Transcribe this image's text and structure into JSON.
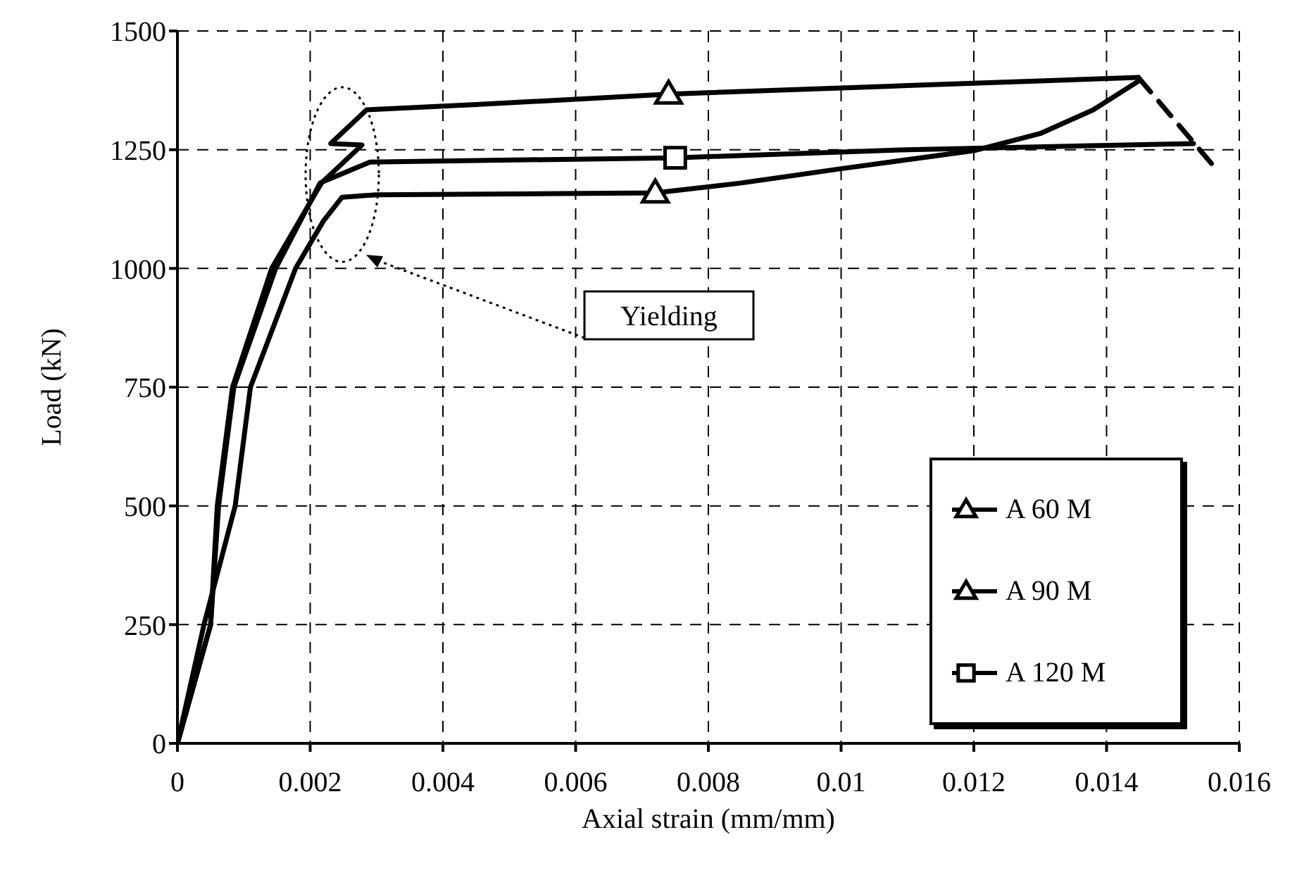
{
  "chart_data": {
    "type": "line",
    "xlabel": "Axial strain (mm/mm)",
    "ylabel": "Load (kN)",
    "xlim": [
      0,
      0.016
    ],
    "xticks": [
      0,
      0.002,
      0.004,
      0.006,
      0.008,
      {
        "value": 0.01,
        "label": "0.01"
      },
      0.012,
      0.014,
      0.016
    ],
    "ylim": [
      0,
      1500
    ],
    "yticks": [
      0,
      250,
      500,
      750,
      1000,
      1250,
      1500
    ],
    "grid": true,
    "legend": "bottom right",
    "line_style": "solid",
    "annotations": [
      "Yielding"
    ],
    "series": [
      {
        "name": "A 60 M",
        "color": "#000000",
        "x": [
          0,
          0.0005,
          0.0006,
          0.00083,
          0.00142,
          0.00217,
          0.00278,
          0.00231,
          0.00285,
          0.0045,
          0.0074,
          0.011,
          0.01448
        ],
        "values": [
          0,
          250,
          500,
          750,
          1000,
          1180,
          1260,
          1263,
          1334,
          1345,
          1367,
          1385,
          1402
        ]
      },
      {
        "type": "scatter",
        "color": "#000000",
        "marker": "triangle",
        "x": [
          0.0074
        ],
        "values": [
          1367
        ]
      },
      {
        "name": "A 90 M",
        "color": "#000000",
        "x": [
          0,
          0.0004,
          0.00087,
          0.0011,
          0.00178,
          0.0022,
          0.00248,
          0.003,
          0.0072,
          0.0085,
          0.01,
          0.012,
          0.013,
          0.0138,
          0.0145
        ],
        "values": [
          0,
          250,
          500,
          750,
          1000,
          1100,
          1150,
          1155,
          1159,
          1180,
          1210,
          1248,
          1284,
          1334,
          1396
        ]
      },
      {
        "type": "scatter",
        "color": "#000000",
        "marker": "triangle",
        "x": [
          0.0072
        ],
        "values": [
          1159
        ]
      },
      {
        "name": "A 120 M",
        "color": "#000000",
        "x": [
          0,
          0.0005,
          0.00062,
          0.00085,
          0.00148,
          0.00215,
          0.0029,
          0.0075,
          0.011,
          0.01531
        ],
        "values": [
          0,
          250,
          500,
          750,
          1000,
          1180,
          1224,
          1233,
          1250,
          1263
        ]
      },
      {
        "type": "scatter",
        "color": "#000000",
        "marker": "square",
        "x": [
          0.0075
        ],
        "values": [
          1233
        ]
      },
      {
        "color": "#000000",
        "line_style": "dashed",
        "x": [
          0.01448,
          0.01558
        ],
        "values": [
          1402,
          1221
        ]
      }
    ]
  }
}
